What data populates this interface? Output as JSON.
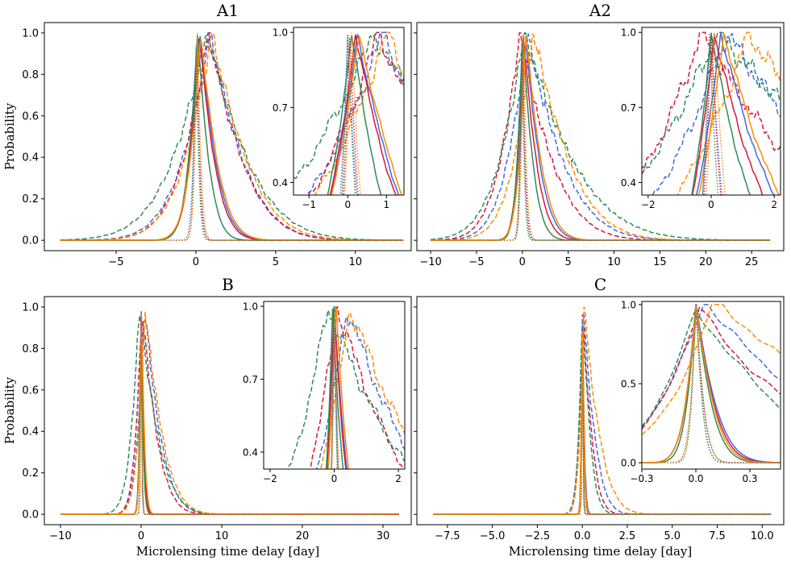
{
  "figure": {
    "xlabel": "Microlensing time delay  [day]",
    "ylabel": "Probability"
  },
  "colors": {
    "blue": "#4169e1",
    "red": "#dc143c",
    "green": "#2e8b57",
    "orange": "#ff8c00"
  },
  "chart_data": [
    {
      "type": "line",
      "title": "A1",
      "xlabel": "",
      "ylabel": "Probability",
      "xlim": [
        -9.5,
        13.5
      ],
      "ylim": [
        -0.05,
        1.05
      ],
      "xticks": [
        -5,
        0,
        5,
        10
      ],
      "yticks": [
        0.0,
        0.2,
        0.4,
        0.6,
        0.8,
        1.0
      ],
      "x_range": [
        -8.5,
        13
      ],
      "series": [
        {
          "name": "blue-dashed",
          "color": "blue",
          "style": "dashed",
          "center": 0.9,
          "width_left": 2.5,
          "width_right": 2.9,
          "floor": 0.0
        },
        {
          "name": "red-dashed",
          "color": "red",
          "style": "dashed",
          "center": 0.8,
          "width_left": 2.3,
          "width_right": 3.0,
          "floor": 0.0
        },
        {
          "name": "green-dashed",
          "color": "green",
          "style": "dashed",
          "center": 0.7,
          "width_left": 3.1,
          "width_right": 3.6,
          "floor": 0.0
        },
        {
          "name": "orange-dashed",
          "color": "orange",
          "style": "dashed",
          "center": 1.0,
          "width_left": 2.4,
          "width_right": 3.1,
          "floor": 0.0
        },
        {
          "name": "blue-solid",
          "color": "blue",
          "style": "solid",
          "center": 0.25,
          "width_left": 0.9,
          "width_right": 1.4,
          "floor": 0.0
        },
        {
          "name": "red-solid",
          "color": "red",
          "style": "solid",
          "center": 0.2,
          "width_left": 0.85,
          "width_right": 1.35,
          "floor": 0.0
        },
        {
          "name": "green-solid",
          "color": "green",
          "style": "solid",
          "center": 0.1,
          "width_left": 0.8,
          "width_right": 1.0,
          "floor": 0.0
        },
        {
          "name": "orange-solid",
          "color": "orange",
          "style": "solid",
          "center": 0.3,
          "width_left": 0.95,
          "width_right": 1.45,
          "floor": 0.0
        },
        {
          "name": "blue-dotted",
          "color": "blue",
          "style": "dotted",
          "center": 0.0,
          "width_left": 0.25,
          "width_right": 0.3,
          "floor": 0.0
        },
        {
          "name": "red-dotted",
          "color": "red",
          "style": "dotted",
          "center": 0.05,
          "width_left": 0.22,
          "width_right": 0.28,
          "floor": 0.0
        },
        {
          "name": "green-dotted",
          "color": "green",
          "style": "dotted",
          "center": 0.0,
          "width_left": 0.2,
          "width_right": 0.25,
          "floor": 0.0
        },
        {
          "name": "orange-dotted",
          "color": "orange",
          "style": "dotted",
          "center": 0.1,
          "width_left": 0.25,
          "width_right": 0.3,
          "floor": 0.0
        }
      ],
      "inset": {
        "xlim": [
          -1.4,
          1.45
        ],
        "ylim": [
          0.35,
          1.02
        ],
        "xticks": [
          -1,
          0,
          1
        ],
        "yticks": [
          0.4,
          0.7,
          1.0
        ],
        "ytick_labels": [
          "0.4",
          "0.7",
          "1.0"
        ]
      }
    },
    {
      "type": "line",
      "title": "A2",
      "xlabel": "",
      "ylabel": "",
      "xlim": [
        -11.5,
        28.5
      ],
      "ylim": [
        -0.05,
        1.05
      ],
      "xticks": [
        -10,
        -5,
        0,
        5,
        10,
        15,
        20,
        25
      ],
      "yticks": [
        0.0,
        0.2,
        0.4,
        0.6,
        0.8,
        1.0
      ],
      "x_range": [
        -10,
        27
      ],
      "series": [
        {
          "name": "blue-dashed",
          "color": "blue",
          "style": "dashed",
          "center": 0.5,
          "width_left": 3.0,
          "width_right": 5.5,
          "floor": 0.0
        },
        {
          "name": "red-dashed",
          "color": "red",
          "style": "dashed",
          "center": -0.3,
          "width_left": 3.0,
          "width_right": 5.0,
          "floor": 0.0
        },
        {
          "name": "green-dashed",
          "color": "green",
          "style": "dashed",
          "center": 0.2,
          "width_left": 3.8,
          "width_right": 7.5,
          "floor": 0.0
        },
        {
          "name": "orange-dashed",
          "color": "orange",
          "style": "dashed",
          "center": 1.2,
          "width_left": 3.0,
          "width_right": 5.5,
          "floor": 0.0
        },
        {
          "name": "blue-solid",
          "color": "blue",
          "style": "solid",
          "center": 0.3,
          "width_left": 1.0,
          "width_right": 2.2,
          "floor": 0.0
        },
        {
          "name": "red-solid",
          "color": "red",
          "style": "solid",
          "center": 0.1,
          "width_left": 0.9,
          "width_right": 2.0,
          "floor": 0.0
        },
        {
          "name": "green-solid",
          "color": "green",
          "style": "solid",
          "center": 0.0,
          "width_left": 0.8,
          "width_right": 1.6,
          "floor": 0.0
        },
        {
          "name": "orange-solid",
          "color": "orange",
          "style": "solid",
          "center": 0.4,
          "width_left": 1.05,
          "width_right": 2.3,
          "floor": 0.0
        },
        {
          "name": "blue-dotted",
          "color": "blue",
          "style": "dotted",
          "center": 0.0,
          "width_left": 0.35,
          "width_right": 0.45,
          "floor": 0.0
        },
        {
          "name": "red-dotted",
          "color": "red",
          "style": "dotted",
          "center": 0.0,
          "width_left": 0.3,
          "width_right": 0.4,
          "floor": 0.0
        },
        {
          "name": "green-dotted",
          "color": "green",
          "style": "dotted",
          "center": -0.05,
          "width_left": 0.3,
          "width_right": 0.35,
          "floor": 0.0
        },
        {
          "name": "orange-dotted",
          "color": "orange",
          "style": "dotted",
          "center": 0.1,
          "width_left": 0.35,
          "width_right": 0.45,
          "floor": 0.0
        }
      ],
      "inset": {
        "xlim": [
          -2.2,
          2.2
        ],
        "ylim": [
          0.35,
          1.02
        ],
        "xticks": [
          -2,
          0,
          2
        ],
        "yticks": [
          0.4,
          0.7,
          1.0
        ],
        "ytick_labels": [
          "0.4",
          "0.7",
          "1.0"
        ]
      }
    },
    {
      "type": "line",
      "title": "B",
      "xlabel": "Microlensing time delay  [day]",
      "ylabel": "Probability",
      "xlim": [
        -12,
        33.5
      ],
      "ylim": [
        -0.05,
        1.05
      ],
      "xticks": [
        -10,
        0,
        10,
        20,
        30
      ],
      "yticks": [
        0.0,
        0.2,
        0.4,
        0.6,
        0.8,
        1.0
      ],
      "x_range": [
        -10,
        32
      ],
      "series": [
        {
          "name": "blue-dashed",
          "color": "blue",
          "style": "dashed",
          "center": 0.4,
          "width_left": 1.2,
          "width_right": 2.8,
          "floor": 0.0
        },
        {
          "name": "red-dashed",
          "color": "red",
          "style": "dashed",
          "center": 0.1,
          "width_left": 1.1,
          "width_right": 2.6,
          "floor": 0.0
        },
        {
          "name": "green-dashed",
          "color": "green",
          "style": "dashed",
          "center": -0.2,
          "width_left": 1.5,
          "width_right": 3.2,
          "floor": 0.0
        },
        {
          "name": "orange-dashed",
          "color": "orange",
          "style": "dashed",
          "center": 0.5,
          "width_left": 1.2,
          "width_right": 3.0,
          "floor": 0.0
        },
        {
          "name": "blue-solid",
          "color": "blue",
          "style": "solid",
          "center": 0.0,
          "width_left": 0.3,
          "width_right": 0.5,
          "floor": 0.0
        },
        {
          "name": "red-solid",
          "color": "red",
          "style": "solid",
          "center": 0.0,
          "width_left": 0.28,
          "width_right": 0.45,
          "floor": 0.0
        },
        {
          "name": "green-solid",
          "color": "green",
          "style": "solid",
          "center": -0.05,
          "width_left": 0.25,
          "width_right": 0.4,
          "floor": 0.0
        },
        {
          "name": "orange-solid",
          "color": "orange",
          "style": "solid",
          "center": 0.05,
          "width_left": 0.3,
          "width_right": 0.5,
          "floor": 0.0
        },
        {
          "name": "blue-dotted",
          "color": "blue",
          "style": "dotted",
          "center": 0.0,
          "width_left": 0.12,
          "width_right": 0.15,
          "floor": 0.0
        },
        {
          "name": "red-dotted",
          "color": "red",
          "style": "dotted",
          "center": 0.0,
          "width_left": 0.1,
          "width_right": 0.13,
          "floor": 0.0
        },
        {
          "name": "green-dotted",
          "color": "green",
          "style": "dotted",
          "center": 0.0,
          "width_left": 0.1,
          "width_right": 0.12,
          "floor": 0.0
        },
        {
          "name": "orange-dotted",
          "color": "orange",
          "style": "dotted",
          "center": 0.02,
          "width_left": 0.12,
          "width_right": 0.15,
          "floor": 0.0
        }
      ],
      "inset": {
        "xlim": [
          -2.2,
          2.2
        ],
        "ylim": [
          0.33,
          1.02
        ],
        "xticks": [
          -2,
          0,
          2
        ],
        "yticks": [
          0.4,
          0.7,
          1.0
        ],
        "ytick_labels": [
          "0.4",
          "0.7",
          "1.0"
        ]
      }
    },
    {
      "type": "line",
      "title": "C",
      "xlabel": "Microlensing time delay  [day]",
      "ylabel": "",
      "xlim": [
        -9.2,
        11.2
      ],
      "ylim": [
        -0.05,
        1.05
      ],
      "xticks": [
        -7.5,
        -5.0,
        -2.5,
        0.0,
        2.5,
        5.0,
        7.5,
        10.0
      ],
      "xtick_labels": [
        "−7.5",
        "−5.0",
        "−2.5",
        "0.0",
        "2.5",
        "5.0",
        "7.5",
        "10.0"
      ],
      "yticks": [
        0.0,
        0.2,
        0.4,
        0.6,
        0.8,
        1.0
      ],
      "x_range": [
        -8.3,
        10.5
      ],
      "series": [
        {
          "name": "blue-dashed",
          "color": "blue",
          "style": "dashed",
          "center": 0.05,
          "width_left": 0.35,
          "width_right": 0.9,
          "floor": 0.0
        },
        {
          "name": "red-dashed",
          "color": "red",
          "style": "dashed",
          "center": 0.02,
          "width_left": 0.3,
          "width_right": 0.7,
          "floor": 0.0
        },
        {
          "name": "green-dashed",
          "color": "green",
          "style": "dashed",
          "center": 0.0,
          "width_left": 0.3,
          "width_right": 0.6,
          "floor": 0.0
        },
        {
          "name": "orange-dashed",
          "color": "orange",
          "style": "dashed",
          "center": 0.1,
          "width_left": 0.35,
          "width_right": 1.2,
          "floor": 0.0
        },
        {
          "name": "blue-solid",
          "color": "blue",
          "style": "solid",
          "center": 0.0,
          "width_left": 0.08,
          "width_right": 0.15,
          "floor": 0.0
        },
        {
          "name": "red-solid",
          "color": "red",
          "style": "solid",
          "center": 0.0,
          "width_left": 0.08,
          "width_right": 0.14,
          "floor": 0.0
        },
        {
          "name": "green-solid",
          "color": "green",
          "style": "solid",
          "center": 0.0,
          "width_left": 0.07,
          "width_right": 0.12,
          "floor": 0.0
        },
        {
          "name": "orange-solid",
          "color": "orange",
          "style": "solid",
          "center": 0.0,
          "width_left": 0.08,
          "width_right": 0.13,
          "floor": 0.0
        },
        {
          "name": "blue-dotted",
          "color": "blue",
          "style": "dotted",
          "center": 0.0,
          "width_left": 0.04,
          "width_right": 0.06,
          "floor": 0.0
        },
        {
          "name": "red-dotted",
          "color": "red",
          "style": "dotted",
          "center": 0.0,
          "width_left": 0.04,
          "width_right": 0.05,
          "floor": 0.0
        },
        {
          "name": "green-dotted",
          "color": "green",
          "style": "dotted",
          "center": 0.0,
          "width_left": 0.035,
          "width_right": 0.05,
          "floor": 0.0
        },
        {
          "name": "orange-dotted",
          "color": "orange",
          "style": "dotted",
          "center": 0.0,
          "width_left": 0.04,
          "width_right": 0.06,
          "floor": 0.0
        }
      ],
      "inset": {
        "xlim": [
          -0.3,
          0.47
        ],
        "ylim": [
          -0.04,
          1.02
        ],
        "xticks": [
          -0.3,
          0.0,
          0.3
        ],
        "xtick_labels": [
          "−0.3",
          "0.0",
          "0.3"
        ],
        "yticks": [
          0.0,
          0.5,
          1.0
        ],
        "ytick_labels": [
          "0.0",
          "0.5",
          "1.0"
        ]
      }
    }
  ]
}
